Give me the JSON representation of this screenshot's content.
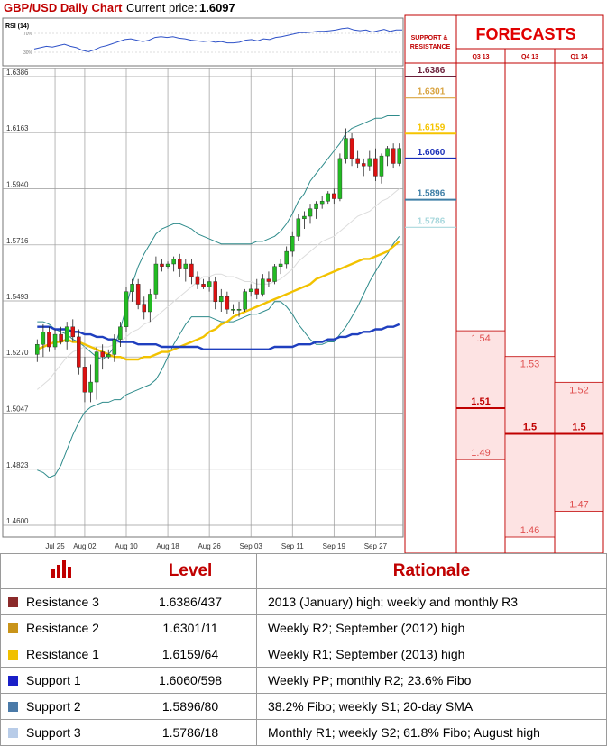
{
  "header": {
    "title": "GBP/USD Daily Chart",
    "price_label": "Current price:",
    "price_value": "1.6097"
  },
  "rsi": {
    "label": "RSI (14)",
    "tick_high": "70%",
    "tick_low": "30%"
  },
  "side_panel": {
    "title": "SUPPORT & RESISTANCE",
    "forecast_title": "FORECASTS"
  },
  "chart_data": {
    "type": "candlestick",
    "title": "GBP/USD Daily Chart",
    "y_ticks": [
      "1.6386",
      "1.6163",
      "1.5940",
      "1.5716",
      "1.5493",
      "1.5270",
      "1.5047",
      "1.4823",
      "1.4600"
    ],
    "ylim": [
      1.46,
      1.6386
    ],
    "x_ticks": [
      "Jul 25",
      "Aug 02",
      "Aug 10",
      "Aug 18",
      "Aug 26",
      "Sep 03",
      "Sep 11",
      "Sep 19",
      "Sep 27"
    ],
    "candles": [
      {
        "o": 1.528,
        "h": 1.534,
        "l": 1.525,
        "c": 1.532
      },
      {
        "o": 1.532,
        "h": 1.54,
        "l": 1.527,
        "c": 1.537
      },
      {
        "o": 1.537,
        "h": 1.539,
        "l": 1.529,
        "c": 1.531
      },
      {
        "o": 1.531,
        "h": 1.538,
        "l": 1.53,
        "c": 1.536
      },
      {
        "o": 1.536,
        "h": 1.539,
        "l": 1.532,
        "c": 1.533
      },
      {
        "o": 1.533,
        "h": 1.541,
        "l": 1.53,
        "c": 1.539
      },
      {
        "o": 1.539,
        "h": 1.542,
        "l": 1.533,
        "c": 1.535
      },
      {
        "o": 1.535,
        "h": 1.538,
        "l": 1.52,
        "c": 1.523
      },
      {
        "o": 1.523,
        "h": 1.527,
        "l": 1.509,
        "c": 1.513
      },
      {
        "o": 1.513,
        "h": 1.524,
        "l": 1.509,
        "c": 1.517
      },
      {
        "o": 1.517,
        "h": 1.531,
        "l": 1.51,
        "c": 1.529
      },
      {
        "o": 1.529,
        "h": 1.532,
        "l": 1.522,
        "c": 1.527
      },
      {
        "o": 1.527,
        "h": 1.53,
        "l": 1.526,
        "c": 1.528
      },
      {
        "o": 1.528,
        "h": 1.536,
        "l": 1.525,
        "c": 1.534
      },
      {
        "o": 1.534,
        "h": 1.541,
        "l": 1.531,
        "c": 1.539
      },
      {
        "o": 1.539,
        "h": 1.555,
        "l": 1.537,
        "c": 1.553
      },
      {
        "o": 1.553,
        "h": 1.558,
        "l": 1.549,
        "c": 1.556
      },
      {
        "o": 1.556,
        "h": 1.558,
        "l": 1.546,
        "c": 1.548
      },
      {
        "o": 1.548,
        "h": 1.551,
        "l": 1.542,
        "c": 1.545
      },
      {
        "o": 1.545,
        "h": 1.554,
        "l": 1.541,
        "c": 1.552
      },
      {
        "o": 1.552,
        "h": 1.567,
        "l": 1.55,
        "c": 1.564
      },
      {
        "o": 1.564,
        "h": 1.566,
        "l": 1.561,
        "c": 1.563
      },
      {
        "o": 1.563,
        "h": 1.565,
        "l": 1.562,
        "c": 1.564
      },
      {
        "o": 1.564,
        "h": 1.567,
        "l": 1.561,
        "c": 1.566
      },
      {
        "o": 1.566,
        "h": 1.568,
        "l": 1.559,
        "c": 1.562
      },
      {
        "o": 1.562,
        "h": 1.566,
        "l": 1.557,
        "c": 1.564
      },
      {
        "o": 1.564,
        "h": 1.566,
        "l": 1.556,
        "c": 1.559
      },
      {
        "o": 1.559,
        "h": 1.561,
        "l": 1.554,
        "c": 1.556
      },
      {
        "o": 1.556,
        "h": 1.558,
        "l": 1.554,
        "c": 1.555
      },
      {
        "o": 1.555,
        "h": 1.559,
        "l": 1.553,
        "c": 1.557
      },
      {
        "o": 1.557,
        "h": 1.559,
        "l": 1.546,
        "c": 1.549
      },
      {
        "o": 1.549,
        "h": 1.554,
        "l": 1.545,
        "c": 1.551
      },
      {
        "o": 1.551,
        "h": 1.553,
        "l": 1.544,
        "c": 1.546
      },
      {
        "o": 1.546,
        "h": 1.548,
        "l": 1.544,
        "c": 1.546
      },
      {
        "o": 1.546,
        "h": 1.549,
        "l": 1.543,
        "c": 1.546
      },
      {
        "o": 1.546,
        "h": 1.554,
        "l": 1.545,
        "c": 1.553
      },
      {
        "o": 1.553,
        "h": 1.556,
        "l": 1.551,
        "c": 1.554
      },
      {
        "o": 1.554,
        "h": 1.558,
        "l": 1.55,
        "c": 1.552
      },
      {
        "o": 1.552,
        "h": 1.56,
        "l": 1.551,
        "c": 1.558
      },
      {
        "o": 1.558,
        "h": 1.561,
        "l": 1.555,
        "c": 1.557
      },
      {
        "o": 1.557,
        "h": 1.564,
        "l": 1.556,
        "c": 1.563
      },
      {
        "o": 1.563,
        "h": 1.566,
        "l": 1.56,
        "c": 1.564
      },
      {
        "o": 1.564,
        "h": 1.571,
        "l": 1.562,
        "c": 1.569
      },
      {
        "o": 1.569,
        "h": 1.577,
        "l": 1.567,
        "c": 1.575
      },
      {
        "o": 1.575,
        "h": 1.584,
        "l": 1.573,
        "c": 1.582
      },
      {
        "o": 1.582,
        "h": 1.585,
        "l": 1.578,
        "c": 1.583
      },
      {
        "o": 1.583,
        "h": 1.588,
        "l": 1.58,
        "c": 1.586
      },
      {
        "o": 1.586,
        "h": 1.589,
        "l": 1.582,
        "c": 1.588
      },
      {
        "o": 1.588,
        "h": 1.591,
        "l": 1.586,
        "c": 1.589
      },
      {
        "o": 1.589,
        "h": 1.593,
        "l": 1.588,
        "c": 1.592
      },
      {
        "o": 1.592,
        "h": 1.594,
        "l": 1.588,
        "c": 1.59
      },
      {
        "o": 1.59,
        "h": 1.608,
        "l": 1.589,
        "c": 1.606
      },
      {
        "o": 1.606,
        "h": 1.618,
        "l": 1.604,
        "c": 1.614
      },
      {
        "o": 1.614,
        "h": 1.616,
        "l": 1.603,
        "c": 1.606
      },
      {
        "o": 1.606,
        "h": 1.609,
        "l": 1.602,
        "c": 1.604
      },
      {
        "o": 1.604,
        "h": 1.606,
        "l": 1.599,
        "c": 1.603
      },
      {
        "o": 1.603,
        "h": 1.609,
        "l": 1.601,
        "c": 1.606
      },
      {
        "o": 1.606,
        "h": 1.61,
        "l": 1.597,
        "c": 1.599
      },
      {
        "o": 1.599,
        "h": 1.608,
        "l": 1.596,
        "c": 1.607
      },
      {
        "o": 1.607,
        "h": 1.611,
        "l": 1.603,
        "c": 1.61
      },
      {
        "o": 1.61,
        "h": 1.612,
        "l": 1.602,
        "c": 1.604
      },
      {
        "o": 1.604,
        "h": 1.612,
        "l": 1.603,
        "c": 1.61
      }
    ],
    "lines": [
      {
        "id": "bollinger-upper",
        "color": "#2e8b8b",
        "values": [
          1.541,
          1.541,
          1.54,
          1.538,
          1.537,
          1.536,
          1.534,
          1.533,
          1.531,
          1.529,
          1.527,
          1.526,
          1.528,
          1.531,
          1.538,
          1.547,
          1.556,
          1.563,
          1.568,
          1.572,
          1.576,
          1.578,
          1.579,
          1.58,
          1.58,
          1.579,
          1.578,
          1.576,
          1.575,
          1.574,
          1.573,
          1.572,
          1.572,
          1.572,
          1.572,
          1.572,
          1.572,
          1.573,
          1.573,
          1.574,
          1.575,
          1.577,
          1.58,
          1.584,
          1.589,
          1.592,
          1.597,
          1.6,
          1.603,
          1.606,
          1.609,
          1.612,
          1.616,
          1.618,
          1.619,
          1.62,
          1.621,
          1.622,
          1.622,
          1.623,
          1.623,
          1.623
        ]
      },
      {
        "id": "bollinger-lower",
        "color": "#2e8b8b",
        "values": [
          1.482,
          1.481,
          1.479,
          1.48,
          1.484,
          1.49,
          1.496,
          1.501,
          1.505,
          1.507,
          1.508,
          1.509,
          1.509,
          1.51,
          1.51,
          1.512,
          1.513,
          1.514,
          1.515,
          1.516,
          1.518,
          1.522,
          1.527,
          1.532,
          1.536,
          1.54,
          1.543,
          1.543,
          1.543,
          1.543,
          1.542,
          1.541,
          1.541,
          1.541,
          1.542,
          1.543,
          1.544,
          1.544,
          1.545,
          1.546,
          1.549,
          1.549,
          1.547,
          1.544,
          1.54,
          1.537,
          1.534,
          1.532,
          1.532,
          1.533,
          1.533,
          1.536,
          1.539,
          1.543,
          1.547,
          1.552,
          1.557,
          1.561,
          1.565,
          1.568,
          1.572,
          1.575
        ]
      },
      {
        "id": "sma-20",
        "color": "#dcdcdc",
        "values": [
          1.514,
          1.516,
          1.518,
          1.521,
          1.524,
          1.527,
          1.529,
          1.53,
          1.531,
          1.531,
          1.531,
          1.531,
          1.531,
          1.532,
          1.533,
          1.535,
          1.537,
          1.538,
          1.54,
          1.541,
          1.543,
          1.545,
          1.547,
          1.549,
          1.551,
          1.553,
          1.555,
          1.557,
          1.559,
          1.559,
          1.56,
          1.56,
          1.559,
          1.559,
          1.558,
          1.557,
          1.557,
          1.556,
          1.556,
          1.556,
          1.557,
          1.558,
          1.56,
          1.562,
          1.565,
          1.567,
          1.569,
          1.571,
          1.573,
          1.574,
          1.575,
          1.577,
          1.579,
          1.581,
          1.583,
          1.584,
          1.585,
          1.587,
          1.589,
          1.59,
          1.592,
          1.594
        ]
      },
      {
        "id": "sma-50",
        "color": "#f2c200",
        "values": [
          1.53,
          1.531,
          1.532,
          1.533,
          1.533,
          1.534,
          1.533,
          1.533,
          1.532,
          1.531,
          1.53,
          1.529,
          1.528,
          1.527,
          1.527,
          1.526,
          1.526,
          1.526,
          1.527,
          1.527,
          1.528,
          1.529,
          1.529,
          1.53,
          1.531,
          1.532,
          1.533,
          1.534,
          1.535,
          1.537,
          1.538,
          1.54,
          1.541,
          1.543,
          1.544,
          1.545,
          1.546,
          1.547,
          1.548,
          1.549,
          1.55,
          1.551,
          1.552,
          1.553,
          1.554,
          1.555,
          1.556,
          1.558,
          1.559,
          1.56,
          1.561,
          1.562,
          1.563,
          1.564,
          1.565,
          1.566,
          1.566,
          1.567,
          1.568,
          1.569,
          1.571,
          1.573
        ]
      },
      {
        "id": "sma-100",
        "color": "#1f3fbf",
        "values": [
          1.539,
          1.539,
          1.539,
          1.538,
          1.538,
          1.538,
          1.537,
          1.537,
          1.536,
          1.536,
          1.535,
          1.535,
          1.534,
          1.534,
          1.533,
          1.533,
          1.533,
          1.532,
          1.532,
          1.532,
          1.532,
          1.531,
          1.531,
          1.531,
          1.531,
          1.531,
          1.531,
          1.531,
          1.53,
          1.53,
          1.53,
          1.53,
          1.53,
          1.53,
          1.53,
          1.53,
          1.53,
          1.53,
          1.53,
          1.53,
          1.531,
          1.531,
          1.531,
          1.531,
          1.532,
          1.532,
          1.532,
          1.533,
          1.533,
          1.534,
          1.534,
          1.535,
          1.535,
          1.536,
          1.536,
          1.537,
          1.537,
          1.538,
          1.538,
          1.539,
          1.539,
          1.54
        ]
      }
    ],
    "rsi_values": [
      42,
      44,
      46,
      45,
      47,
      49,
      46,
      44,
      40,
      38,
      41,
      45,
      47,
      50,
      53,
      56,
      57,
      55,
      53,
      55,
      59,
      60,
      59,
      60,
      58,
      57,
      55,
      54,
      53,
      54,
      52,
      53,
      51,
      51,
      52,
      55,
      56,
      54,
      57,
      56,
      59,
      60,
      62,
      64,
      66,
      66,
      67,
      68,
      68,
      69,
      70,
      72,
      73,
      70,
      69,
      70,
      67,
      69,
      71,
      68,
      70,
      70
    ],
    "levels": [
      {
        "value": 1.6386,
        "label": "1.6386",
        "color": "#6b1f3a"
      },
      {
        "value": 1.6301,
        "label": "1.6301",
        "color": "#d9a441"
      },
      {
        "value": 1.6159,
        "label": "1.6159",
        "color": "#f5c400"
      },
      {
        "value": 1.606,
        "label": "1.6060",
        "color": "#1a2fb8"
      },
      {
        "value": 1.5896,
        "label": "1.5896",
        "color": "#3f7fa6"
      },
      {
        "value": 1.5786,
        "label": "1.5786",
        "color": "#a9d8dd"
      }
    ],
    "forecasts": {
      "ylim": [
        1.45,
        1.65
      ],
      "columns": [
        {
          "quarter": "Q3 13",
          "high": 1.54,
          "median": 1.51,
          "low": 1.49,
          "high_label": "1.54",
          "median_label": "1.51",
          "low_label": "1.49"
        },
        {
          "quarter": "Q4 13",
          "high": 1.53,
          "median": 1.5,
          "low": 1.46,
          "high_label": "1.53",
          "median_label": "1.5",
          "low_label": "1.46"
        },
        {
          "quarter": "Q1 14",
          "high": 1.52,
          "median": 1.5,
          "low": 1.47,
          "high_label": "1.52",
          "median_label": "1.5",
          "low_label": "1.47"
        }
      ]
    }
  },
  "table": {
    "headers": [
      "",
      "Level",
      "Rationale"
    ],
    "rows": [
      {
        "name": "Resistance 3",
        "level": "1.6386/437",
        "rationale": "2013 (January) high; weekly and monthly R3",
        "color": "#8b2a2a"
      },
      {
        "name": "Resistance 2",
        "level": "1.6301/11",
        "rationale": "Weekly R2; September (2012) high",
        "color": "#c9941a"
      },
      {
        "name": "Resistance 1",
        "level": "1.6159/64",
        "rationale": "Weekly R1; September (2013) high",
        "color": "#f0c000"
      },
      {
        "name": "Support 1",
        "level": "1.6060/598",
        "rationale": "Weekly PP; monthly R2; 23.6% Fibo",
        "color": "#1a1fc8"
      },
      {
        "name": "Support 2",
        "level": "1.5896/80",
        "rationale": "38.2% Fibo; weekly S1; 20-day SMA",
        "color": "#4a7aa8"
      },
      {
        "name": "Support 3",
        "level": "1.5786/18",
        "rationale": "Monthly R1; weekly S2; 61.8% Fibo; August high",
        "color": "#b8cce8"
      }
    ]
  },
  "colors": {
    "accent": "#c00000",
    "bull": "#22bb22",
    "bear": "#dd1111",
    "grid": "#9a9a9a",
    "forecast_fill": "#fde3e3"
  }
}
